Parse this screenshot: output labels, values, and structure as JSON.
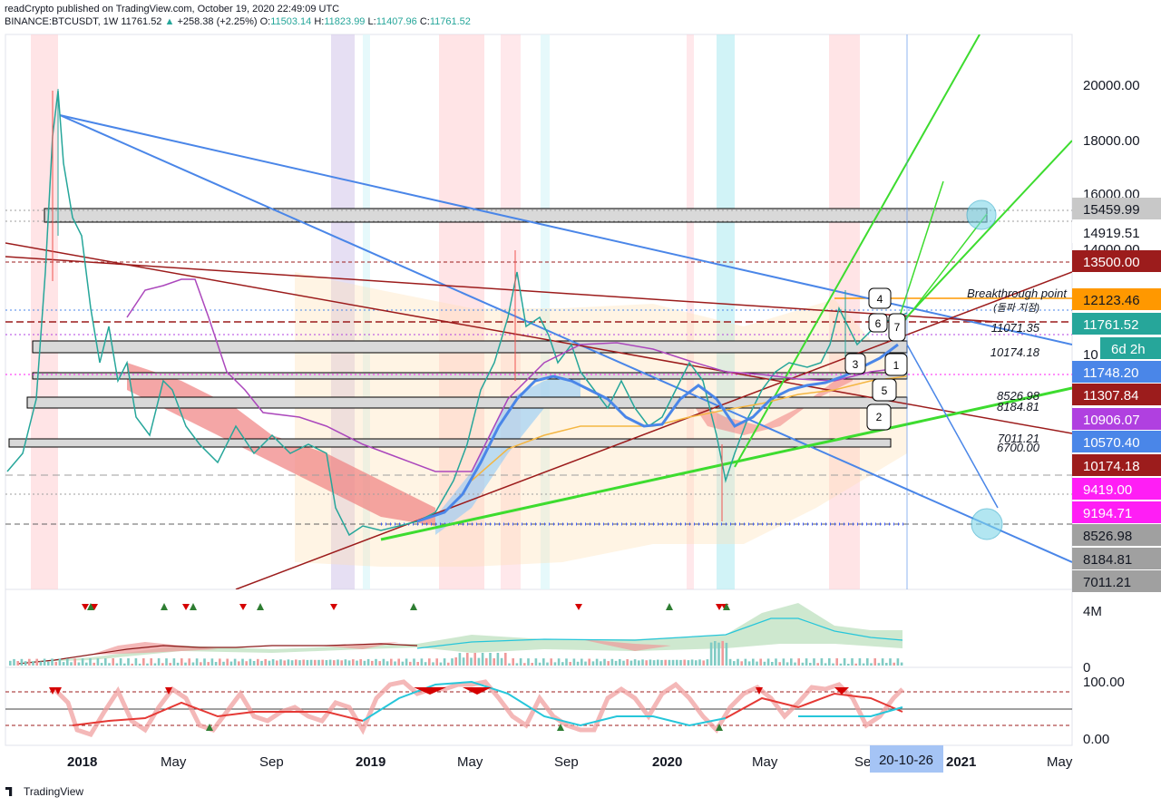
{
  "header": {
    "line1": "readCrypto published on TradingView.com, October 19, 2020 22:49:09 UTC",
    "symbol": "BINANCE:BTCUSDT, 1W",
    "price": "11761.52",
    "change": "+258.38 (+2.25%)",
    "o_label": "O:",
    "o": "11503.14",
    "h_label": "H:",
    "h": "11823.99",
    "l_label": "L:",
    "l": "11407.96",
    "c_label": "C:",
    "c": "11761.52"
  },
  "footer": {
    "brand": "TradingView"
  },
  "colors": {
    "up": "#26a69a",
    "down": "#ef5350",
    "blue_line": "#4a86e8",
    "dark_red": "#9c1c1c",
    "green": "#3ddc2f",
    "orange": "#ff9800",
    "purple": "#b388ff",
    "magenta": "#e040fb"
  },
  "chart_data": {
    "type": "line",
    "title": "BINANCE:BTCUSDT, 1W",
    "x_ticks": [
      "2018",
      "May",
      "Sep",
      "2019",
      "May",
      "Sep",
      "2020",
      "May",
      "Se",
      "2021",
      "May"
    ],
    "x_cursor_label": "20-10-26",
    "y_ticks": [
      "20000.00",
      "18000.00",
      "16000.00",
      "14000.00",
      "10"
    ],
    "price_labels": [
      {
        "text": "15459.99",
        "value": 15459.99,
        "bg": "#c8c8c8",
        "fg": "#131722"
      },
      {
        "text": "14919.51",
        "value": 14919.51,
        "bg": "#ffffff",
        "fg": "#131722"
      },
      {
        "text": "13500.00",
        "value": 13500.0,
        "bg": "#9c1c1c",
        "fg": "#ffffff"
      },
      {
        "text": "12123.46",
        "value": 12123.46,
        "bg": "#ff9800",
        "fg": "#131722"
      },
      {
        "text": "11761.52",
        "value": 11761.52,
        "bg": "#26a69a",
        "fg": "#ffffff"
      },
      {
        "text": "6d 2h",
        "value": null,
        "bg": "#26a69a",
        "fg": "#ffffff"
      },
      {
        "text": "11748.20",
        "value": 11748.2,
        "bg": "#4a86e8",
        "fg": "#ffffff"
      },
      {
        "text": "11307.84",
        "value": 11307.84,
        "bg": "#9c1c1c",
        "fg": "#ffffff"
      },
      {
        "text": "10906.07",
        "value": 10906.07,
        "bg": "#b040e0",
        "fg": "#ffffff"
      },
      {
        "text": "10570.40",
        "value": 10570.4,
        "bg": "#4a86e8",
        "fg": "#ffffff"
      },
      {
        "text": "10174.18",
        "value": 10174.18,
        "bg": "#9c1c1c",
        "fg": "#ffffff"
      },
      {
        "text": "9419.00",
        "value": 9419.0,
        "bg": "#ff1ef5",
        "fg": "#ffffff"
      },
      {
        "text": "9194.71",
        "value": 9194.71,
        "bg": "#ff1ef5",
        "fg": "#ffffff"
      },
      {
        "text": "8526.98",
        "value": 8526.98,
        "bg": "#a0a0a0",
        "fg": "#131722"
      },
      {
        "text": "8184.81",
        "value": 8184.81,
        "bg": "#a0a0a0",
        "fg": "#131722"
      },
      {
        "text": "7011.21",
        "value": 7011.21,
        "bg": "#a0a0a0",
        "fg": "#131722"
      }
    ],
    "annotations": {
      "breakthrough": "Breakthrough point",
      "breakthrough_kr": "(돌파 지점)",
      "levels": [
        "11071.35",
        "10174.18",
        "8526.98",
        "8184.81",
        "7011.21",
        "6700.00"
      ],
      "boxes": [
        "4",
        "6",
        "7",
        "3",
        "1",
        "5",
        "2"
      ]
    },
    "volume_ticks": [
      "4M",
      "0"
    ],
    "oscillator_ticks": [
      "100.00",
      "0.00"
    ]
  }
}
